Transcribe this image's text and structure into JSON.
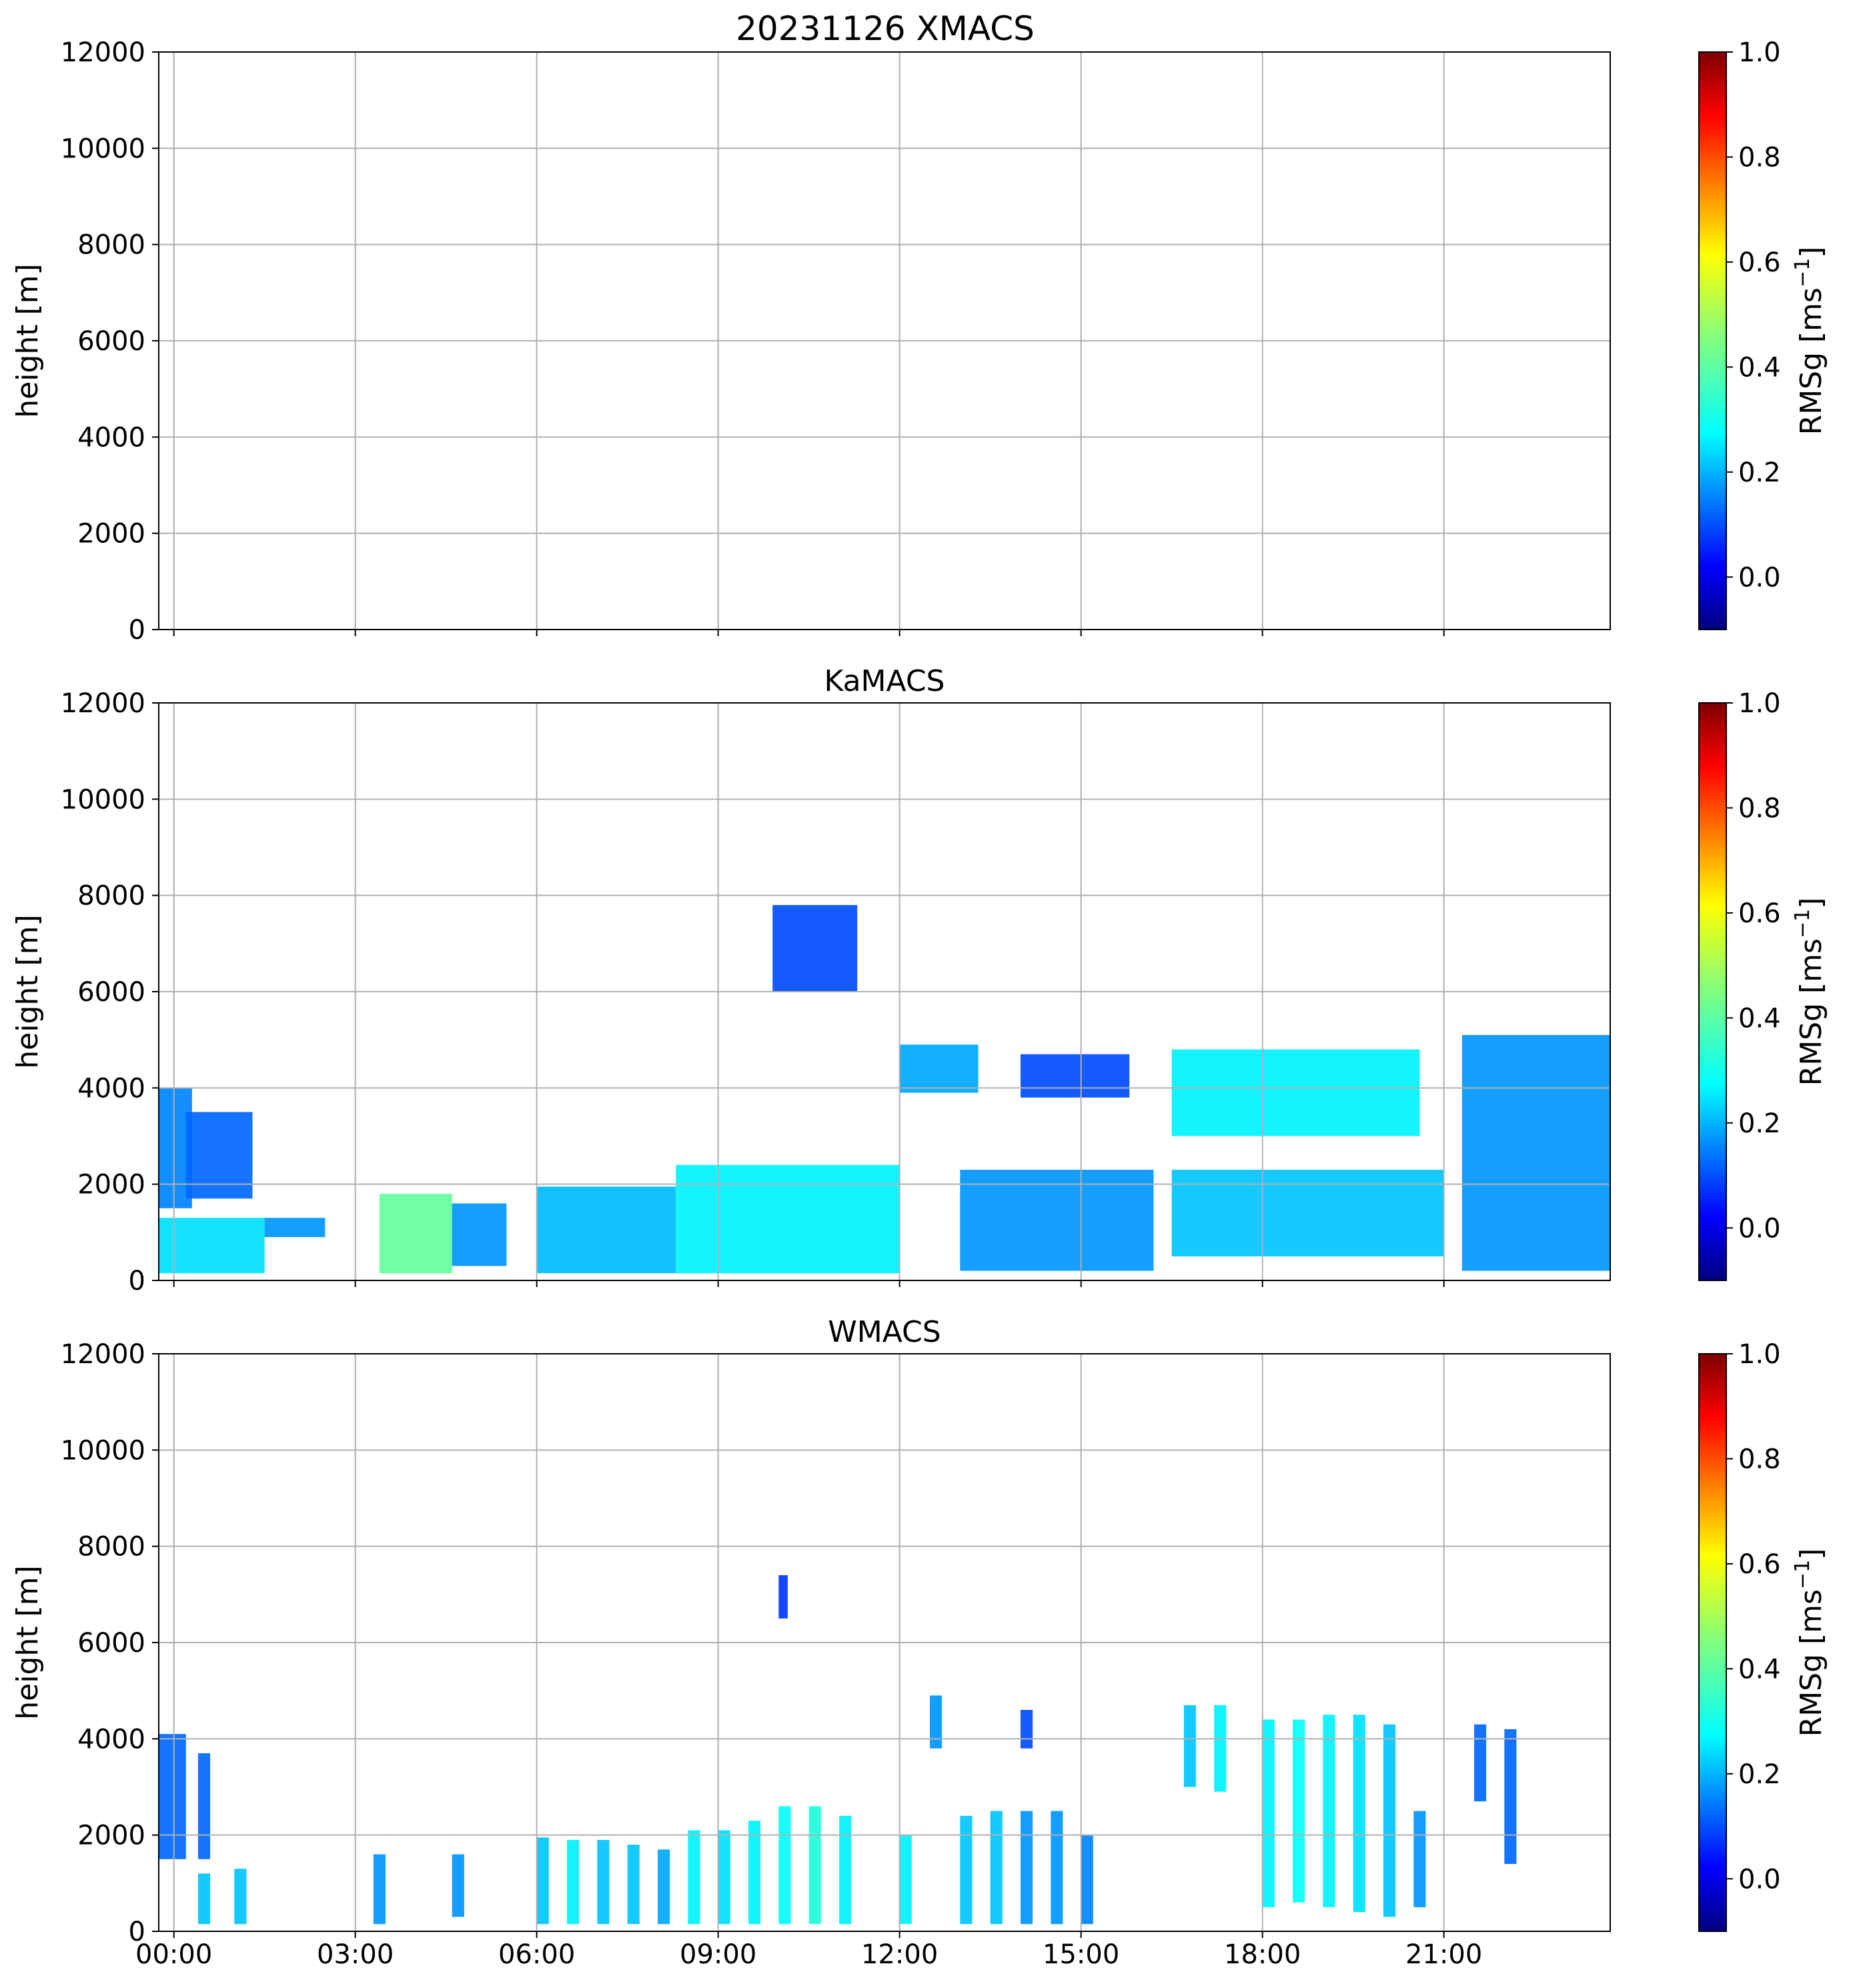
{
  "figure_title": "20231126 XMACS",
  "chart_data": [
    {
      "type": "heatmap",
      "title": "20231126 XMACS",
      "ylabel": "height [m]",
      "ylim": [
        0,
        12000
      ],
      "yticks": [
        "0",
        "2000",
        "4000",
        "6000",
        "8000",
        "10000",
        "12000"
      ],
      "xlim_hours": [
        -0.25,
        23.75
      ],
      "xticks": [
        "00:00",
        "03:00",
        "06:00",
        "09:00",
        "12:00",
        "15:00",
        "18:00",
        "21:00"
      ],
      "show_xtick_labels": false,
      "grid": true,
      "colorbar": {
        "label": "RMSg [ms",
        "label_sup": "−1",
        "label_end": "]",
        "vmin": -0.1,
        "vmax": 1.0,
        "ticks": [
          "0.0",
          "0.2",
          "0.4",
          "0.6",
          "0.8",
          "1.0"
        ],
        "colormap": "jet"
      },
      "cloud_regions": []
    },
    {
      "type": "heatmap",
      "title": "KaMACS",
      "ylabel": "height [m]",
      "ylim": [
        0,
        12000
      ],
      "yticks": [
        "0",
        "2000",
        "4000",
        "6000",
        "8000",
        "10000",
        "12000"
      ],
      "xlim_hours": [
        -0.25,
        23.75
      ],
      "xticks": [
        "00:00",
        "03:00",
        "06:00",
        "09:00",
        "12:00",
        "15:00",
        "18:00",
        "21:00"
      ],
      "show_xtick_labels": false,
      "grid": true,
      "colorbar": {
        "label": "RMSg [ms",
        "label_sup": "−1",
        "label_end": "]",
        "vmin": -0.1,
        "vmax": 1.0,
        "ticks": [
          "0.0",
          "0.2",
          "0.4",
          "0.6",
          "0.8",
          "1.0"
        ],
        "colormap": "jet"
      },
      "cloud_regions": [
        {
          "t0": -0.25,
          "t1": 0.3,
          "h0": 1500,
          "h1": 4000,
          "v": 0.18
        },
        {
          "t0": 0.2,
          "t1": 1.3,
          "h0": 1700,
          "h1": 3500,
          "v": 0.15
        },
        {
          "t0": -0.25,
          "t1": 1.5,
          "h0": 150,
          "h1": 1300,
          "v": 0.28
        },
        {
          "t0": 1.5,
          "t1": 2.5,
          "h0": 900,
          "h1": 1300,
          "v": 0.2
        },
        {
          "t0": 3.4,
          "t1": 4.6,
          "h0": 150,
          "h1": 1800,
          "v": 0.42
        },
        {
          "t0": 4.6,
          "t1": 5.5,
          "h0": 300,
          "h1": 1600,
          "v": 0.2
        },
        {
          "t0": 6.0,
          "t1": 8.3,
          "h0": 150,
          "h1": 1950,
          "v": 0.24
        },
        {
          "t0": 8.3,
          "t1": 12.0,
          "h0": 150,
          "h1": 2400,
          "v": 0.3
        },
        {
          "t0": 9.9,
          "t1": 11.3,
          "h0": 6000,
          "h1": 7800,
          "v": 0.12
        },
        {
          "t0": 12.0,
          "t1": 13.3,
          "h0": 3900,
          "h1": 4900,
          "v": 0.22
        },
        {
          "t0": 14.0,
          "t1": 15.8,
          "h0": 3800,
          "h1": 4700,
          "v": 0.12
        },
        {
          "t0": 13.0,
          "t1": 16.2,
          "h0": 200,
          "h1": 2300,
          "v": 0.2
        },
        {
          "t0": 16.5,
          "t1": 20.6,
          "h0": 3000,
          "h1": 4800,
          "v": 0.3
        },
        {
          "t0": 16.5,
          "t1": 21.0,
          "h0": 500,
          "h1": 2300,
          "v": 0.25
        },
        {
          "t0": 21.3,
          "t1": 23.75,
          "h0": 200,
          "h1": 5100,
          "v": 0.2
        }
      ]
    },
    {
      "type": "heatmap",
      "title": "WMACS",
      "ylabel": "height [m]",
      "ylim": [
        0,
        12000
      ],
      "yticks": [
        "0",
        "2000",
        "4000",
        "6000",
        "8000",
        "10000",
        "12000"
      ],
      "xlim_hours": [
        -0.25,
        23.75
      ],
      "xticks": [
        "00:00",
        "03:00",
        "06:00",
        "09:00",
        "12:00",
        "15:00",
        "18:00",
        "21:00"
      ],
      "show_xtick_labels": true,
      "grid": true,
      "colorbar": {
        "label": "RMSg [ms",
        "label_sup": "−1",
        "label_end": "]",
        "vmin": -0.1,
        "vmax": 1.0,
        "ticks": [
          "0.0",
          "0.2",
          "0.4",
          "0.6",
          "0.8",
          "1.0"
        ],
        "colormap": "jet"
      },
      "cloud_regions": [
        {
          "t0": -0.25,
          "t1": 0.2,
          "h0": 1500,
          "h1": 4100,
          "v": 0.15
        },
        {
          "t0": 0.4,
          "t1": 0.6,
          "h0": 1500,
          "h1": 3700,
          "v": 0.15
        },
        {
          "t0": 0.4,
          "t1": 0.6,
          "h0": 150,
          "h1": 1200,
          "v": 0.25
        },
        {
          "t0": 1.0,
          "t1": 1.2,
          "h0": 150,
          "h1": 1300,
          "v": 0.25
        },
        {
          "t0": 3.3,
          "t1": 3.5,
          "h0": 150,
          "h1": 1600,
          "v": 0.2
        },
        {
          "t0": 4.6,
          "t1": 4.8,
          "h0": 300,
          "h1": 1600,
          "v": 0.2
        },
        {
          "t0": 6.0,
          "t1": 6.2,
          "h0": 150,
          "h1": 1950,
          "v": 0.25
        },
        {
          "t0": 6.5,
          "t1": 6.7,
          "h0": 150,
          "h1": 1900,
          "v": 0.3
        },
        {
          "t0": 7.0,
          "t1": 7.2,
          "h0": 150,
          "h1": 1900,
          "v": 0.25
        },
        {
          "t0": 7.5,
          "t1": 7.7,
          "h0": 150,
          "h1": 1800,
          "v": 0.25
        },
        {
          "t0": 8.0,
          "t1": 8.2,
          "h0": 150,
          "h1": 1700,
          "v": 0.22
        },
        {
          "t0": 8.5,
          "t1": 8.7,
          "h0": 150,
          "h1": 2100,
          "v": 0.3
        },
        {
          "t0": 9.0,
          "t1": 9.2,
          "h0": 150,
          "h1": 2100,
          "v": 0.28
        },
        {
          "t0": 9.5,
          "t1": 9.7,
          "h0": 150,
          "h1": 2300,
          "v": 0.3
        },
        {
          "t0": 10.0,
          "t1": 10.2,
          "h0": 150,
          "h1": 2600,
          "v": 0.32
        },
        {
          "t0": 10.5,
          "t1": 10.7,
          "h0": 150,
          "h1": 2600,
          "v": 0.35
        },
        {
          "t0": 11.0,
          "t1": 11.2,
          "h0": 150,
          "h1": 2400,
          "v": 0.3
        },
        {
          "t0": 10.0,
          "t1": 10.15,
          "h0": 6500,
          "h1": 7400,
          "v": 0.1
        },
        {
          "t0": 12.0,
          "t1": 12.2,
          "h0": 150,
          "h1": 2000,
          "v": 0.3
        },
        {
          "t0": 12.5,
          "t1": 12.7,
          "h0": 3800,
          "h1": 4900,
          "v": 0.2
        },
        {
          "t0": 13.0,
          "t1": 13.2,
          "h0": 150,
          "h1": 2400,
          "v": 0.25
        },
        {
          "t0": 13.5,
          "t1": 13.7,
          "h0": 150,
          "h1": 2500,
          "v": 0.25
        },
        {
          "t0": 14.0,
          "t1": 14.2,
          "h0": 150,
          "h1": 2500,
          "v": 0.2
        },
        {
          "t0": 14.5,
          "t1": 14.7,
          "h0": 150,
          "h1": 2500,
          "v": 0.2
        },
        {
          "t0": 15.0,
          "t1": 15.2,
          "h0": 150,
          "h1": 2000,
          "v": 0.18
        },
        {
          "t0": 14.0,
          "t1": 14.2,
          "h0": 3800,
          "h1": 4600,
          "v": 0.12
        },
        {
          "t0": 16.7,
          "t1": 16.9,
          "h0": 3000,
          "h1": 4700,
          "v": 0.25
        },
        {
          "t0": 17.2,
          "t1": 17.4,
          "h0": 2900,
          "h1": 4700,
          "v": 0.3
        },
        {
          "t0": 18.0,
          "t1": 18.2,
          "h0": 500,
          "h1": 4400,
          "v": 0.3
        },
        {
          "t0": 18.5,
          "t1": 18.7,
          "h0": 600,
          "h1": 4400,
          "v": 0.32
        },
        {
          "t0": 19.0,
          "t1": 19.2,
          "h0": 500,
          "h1": 4500,
          "v": 0.3
        },
        {
          "t0": 19.5,
          "t1": 19.7,
          "h0": 400,
          "h1": 4500,
          "v": 0.28
        },
        {
          "t0": 20.0,
          "t1": 20.2,
          "h0": 300,
          "h1": 4300,
          "v": 0.25
        },
        {
          "t0": 20.5,
          "t1": 20.7,
          "h0": 500,
          "h1": 2500,
          "v": 0.2
        },
        {
          "t0": 21.5,
          "t1": 21.7,
          "h0": 2700,
          "h1": 4300,
          "v": 0.15
        },
        {
          "t0": 22.0,
          "t1": 22.2,
          "h0": 1400,
          "h1": 4200,
          "v": 0.15
        }
      ]
    }
  ]
}
